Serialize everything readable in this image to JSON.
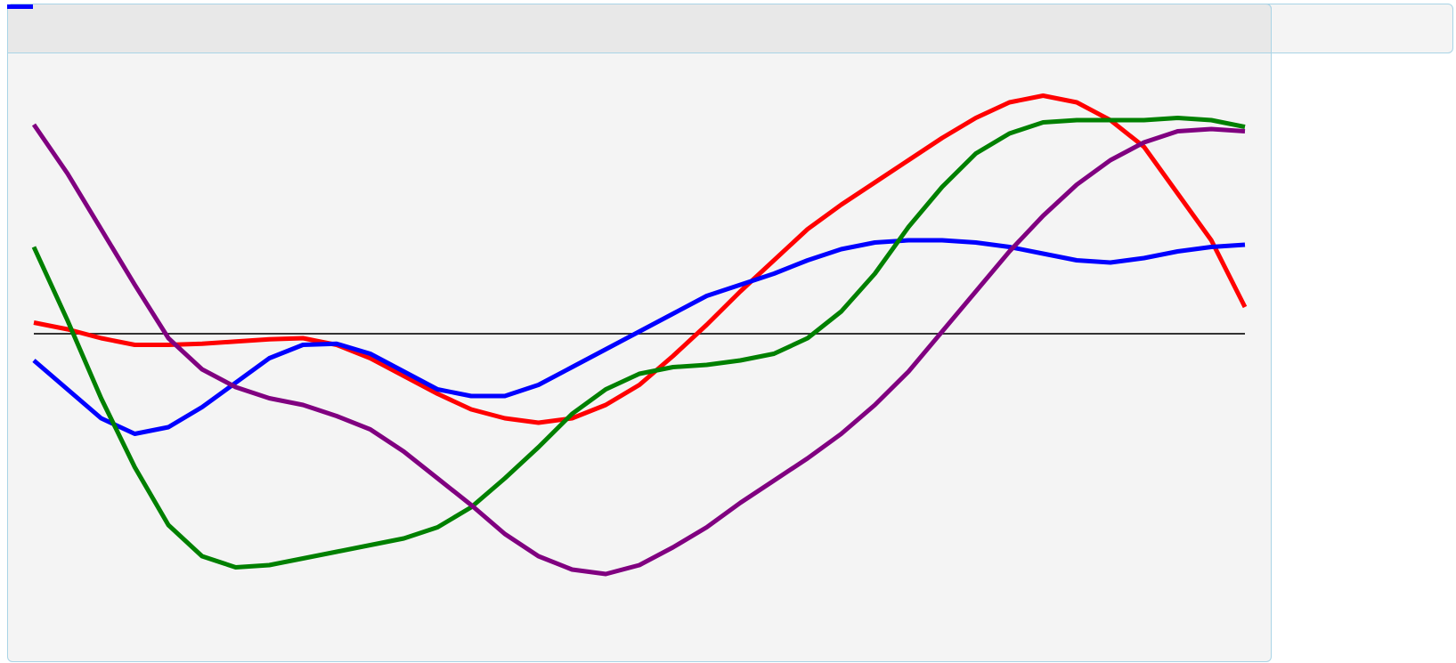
{
  "title": "",
  "chart_data": {
    "type": "line",
    "title": "",
    "xlabel": "",
    "ylabel": "",
    "x": [
      0,
      1,
      2,
      3,
      4,
      5,
      6,
      7,
      8,
      9,
      10,
      11,
      12,
      13,
      14,
      15,
      16,
      17,
      18,
      19,
      20,
      21,
      22,
      23,
      24,
      25,
      26,
      27,
      28,
      29,
      30,
      31,
      32,
      33,
      34,
      35,
      36
    ],
    "xlim": [
      0,
      36
    ],
    "ylim": [
      -1.1,
      1.1
    ],
    "baseline": 0,
    "grid": false,
    "legend": "top",
    "series": [
      {
        "color": "#ff0000",
        "values": [
          0.05,
          0.02,
          -0.02,
          -0.05,
          -0.05,
          -0.045,
          -0.035,
          -0.025,
          -0.02,
          -0.05,
          -0.11,
          -0.19,
          -0.27,
          -0.34,
          -0.38,
          -0.4,
          -0.38,
          -0.32,
          -0.23,
          -0.1,
          0.04,
          0.19,
          0.33,
          0.47,
          0.58,
          0.68,
          0.78,
          0.88,
          0.97,
          1.04,
          1.07,
          1.04,
          0.96,
          0.84,
          0.63,
          0.42,
          0.12
        ]
      },
      {
        "color": "#0000ff",
        "values": [
          -0.12,
          -0.25,
          -0.38,
          -0.45,
          -0.42,
          -0.33,
          -0.22,
          -0.11,
          -0.05,
          -0.045,
          -0.09,
          -0.17,
          -0.25,
          -0.28,
          -0.28,
          -0.23,
          -0.15,
          -0.07,
          0.01,
          0.09,
          0.17,
          0.22,
          0.27,
          0.33,
          0.38,
          0.41,
          0.42,
          0.42,
          0.41,
          0.39,
          0.36,
          0.33,
          0.32,
          0.34,
          0.37,
          0.39,
          0.4
        ]
      },
      {
        "color": "#008000",
        "values": [
          0.39,
          0.06,
          -0.29,
          -0.6,
          -0.86,
          -1.0,
          -1.05,
          -1.04,
          -1.01,
          -0.98,
          -0.95,
          -0.92,
          -0.87,
          -0.78,
          -0.65,
          -0.51,
          -0.36,
          -0.25,
          -0.18,
          -0.15,
          -0.14,
          -0.12,
          -0.09,
          -0.02,
          0.1,
          0.27,
          0.48,
          0.66,
          0.81,
          0.9,
          0.95,
          0.96,
          0.96,
          0.96,
          0.97,
          0.96,
          0.93
        ]
      },
      {
        "color": "#800080",
        "values": [
          0.94,
          0.72,
          0.47,
          0.22,
          -0.02,
          -0.16,
          -0.24,
          -0.29,
          -0.32,
          -0.37,
          -0.43,
          -0.53,
          -0.65,
          -0.77,
          -0.9,
          -1.0,
          -1.06,
          -1.08,
          -1.04,
          -0.96,
          -0.87,
          -0.76,
          -0.66,
          -0.56,
          -0.45,
          -0.32,
          -0.17,
          0.01,
          0.19,
          0.37,
          0.53,
          0.67,
          0.78,
          0.86,
          0.91,
          0.92,
          0.91
        ]
      }
    ]
  }
}
